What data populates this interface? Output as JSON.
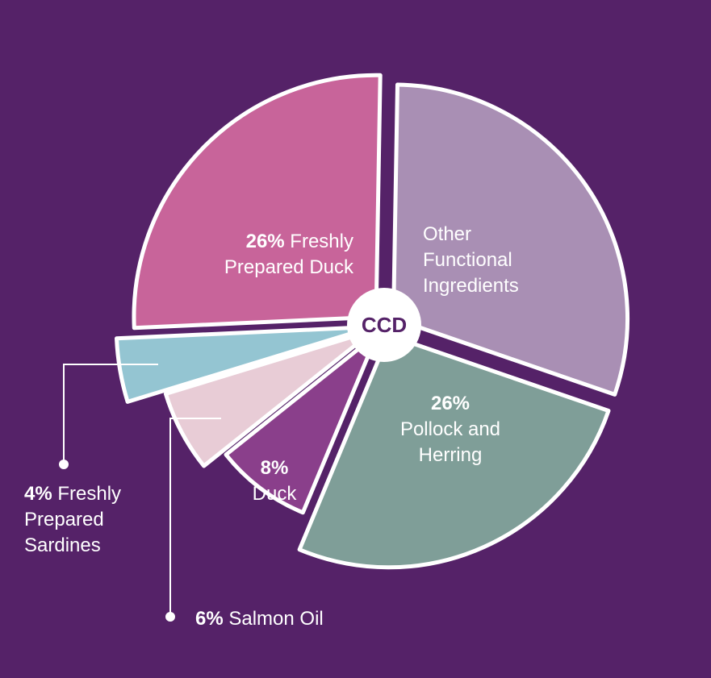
{
  "chart_data": {
    "type": "pie",
    "center_label": "CCD",
    "slices": [
      {
        "name": "Other Functional Ingredients",
        "value": 30,
        "label_pct": "",
        "label_lines": [
          "Other",
          "Functional",
          "Ingredients"
        ],
        "color": "#a98fb4"
      },
      {
        "name": "Pollock and Herring",
        "value": 26,
        "label_pct": "26%",
        "label_lines": [
          "Pollock and",
          "Herring"
        ],
        "color": "#7f9e98"
      },
      {
        "name": "Duck",
        "value": 8,
        "label_pct": "8%",
        "label_lines": [
          "Duck"
        ],
        "color": "#8a3f8b"
      },
      {
        "name": "Salmon Oil",
        "value": 6,
        "label_pct": "6%",
        "label_lines": [
          "Salmon Oil"
        ],
        "color": "#e8ccd6"
      },
      {
        "name": "Freshly Prepared Sardines",
        "value": 4,
        "label_pct": "4%",
        "label_lines": [
          "Freshly",
          "Prepared",
          "Sardines"
        ],
        "color": "#94c5d2"
      },
      {
        "name": "Freshly Prepared Duck",
        "value": 26,
        "label_pct": "26%",
        "label_lines": [
          "Freshly",
          "Prepared Duck"
        ],
        "color": "#c8649a"
      }
    ]
  },
  "colors": {
    "background": "#552268",
    "stroke": "#ffffff",
    "center_text": "#552268"
  }
}
